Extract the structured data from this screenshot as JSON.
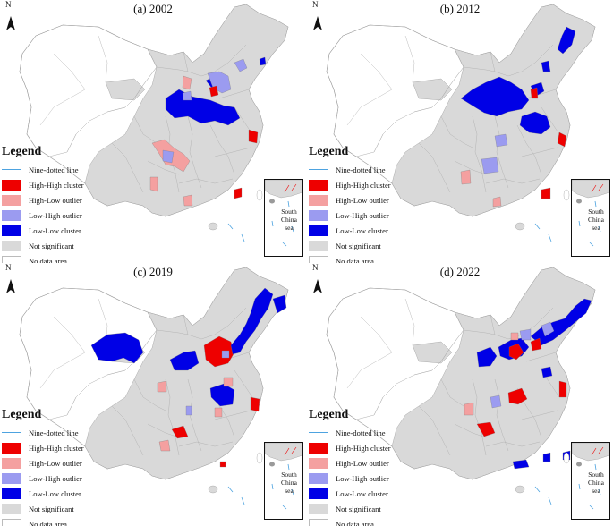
{
  "panels": [
    {
      "title": "(a) 2002"
    },
    {
      "title": "(b) 2012"
    },
    {
      "title": "(c) 2019"
    },
    {
      "title": "(d) 2022"
    }
  ],
  "north_label": "N",
  "legend": {
    "title": "Legend",
    "items": [
      {
        "label": "Nine-dotted line",
        "type": "line",
        "color": "#4da3e0"
      },
      {
        "label": "High-High cluster",
        "type": "fill",
        "color": "#ee0000"
      },
      {
        "label": "High-Low outlier",
        "type": "fill",
        "color": "#f4a0a0"
      },
      {
        "label": "Low-High outlier",
        "type": "fill",
        "color": "#9b9bf0"
      },
      {
        "label": "Low-Low cluster",
        "type": "fill",
        "color": "#0000e6"
      },
      {
        "label": "Not significant",
        "type": "fill",
        "color": "#d9d9d9"
      },
      {
        "label": "No data area",
        "type": "fill",
        "color": "#ffffff"
      }
    ]
  },
  "inset": {
    "line1": "South",
    "line2": "China",
    "line3": "sea"
  },
  "colors": {
    "high_high": "#ee0000",
    "high_low": "#f4a0a0",
    "low_high": "#9b9bf0",
    "low_low": "#0000e6",
    "not_significant": "#d9d9d9",
    "no_data": "#ffffff",
    "border": "#9a9a9a"
  }
}
